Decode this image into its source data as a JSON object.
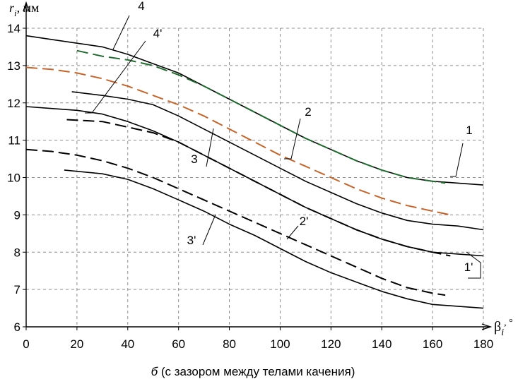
{
  "chart_data": {
    "type": "line",
    "ylabel_main": "r",
    "ylabel_sub": "i",
    "ylabel_unit": ", мм",
    "xlabel_main": "β",
    "xlabel_sub": "i",
    "xlabel_unit": ", °",
    "caption_prefix": "б",
    "caption_text": " (с зазором между телами качения)",
    "xlim": [
      0,
      180
    ],
    "ylim": [
      6,
      14
    ],
    "x_ticks": [
      0,
      20,
      40,
      60,
      80,
      100,
      120,
      140,
      160,
      180
    ],
    "y_ticks": [
      6,
      7,
      8,
      9,
      10,
      11,
      12,
      13,
      14
    ],
    "grid": true,
    "series": [
      {
        "name": "1",
        "style": "solid",
        "color": "#000000",
        "x": [
          0,
          10,
          20,
          30,
          40,
          50,
          60,
          70,
          80,
          90,
          100,
          110,
          120,
          130,
          140,
          150,
          160,
          170,
          180
        ],
        "y": [
          13.8,
          13.7,
          13.6,
          13.5,
          13.3,
          13.05,
          12.8,
          12.45,
          12.1,
          11.75,
          11.4,
          11.05,
          10.75,
          10.45,
          10.2,
          10.0,
          9.9,
          9.85,
          9.8
        ]
      },
      {
        "name": "4",
        "style": "dashed",
        "color": "#1f6b2e",
        "x": [
          20,
          30,
          40,
          50,
          60,
          70,
          80,
          90,
          100,
          110,
          120,
          130,
          140,
          150,
          160,
          165
        ],
        "y": [
          13.4,
          13.25,
          13.15,
          13.0,
          12.75,
          12.45,
          12.1,
          11.75,
          11.4,
          11.05,
          10.75,
          10.45,
          10.2,
          10.0,
          9.9,
          9.85
        ]
      },
      {
        "name": "2",
        "style": "dashed",
        "color": "#c8642a",
        "x": [
          0,
          10,
          20,
          30,
          40,
          50,
          60,
          70,
          80,
          90,
          100,
          110,
          120,
          130,
          140,
          150,
          160,
          167
        ],
        "y": [
          12.95,
          12.9,
          12.8,
          12.65,
          12.45,
          12.2,
          11.95,
          11.65,
          11.3,
          10.95,
          10.6,
          10.3,
          10.0,
          9.7,
          9.45,
          9.25,
          9.1,
          9.0
        ]
      },
      {
        "name": "3",
        "style": "solid",
        "color": "#000000",
        "x": [
          18,
          30,
          40,
          50,
          60,
          70,
          80,
          90,
          100,
          110,
          120,
          130,
          140,
          150,
          160,
          170,
          180
        ],
        "y": [
          12.3,
          12.2,
          12.1,
          11.95,
          11.65,
          11.3,
          10.95,
          10.6,
          10.25,
          9.9,
          9.6,
          9.3,
          9.05,
          8.85,
          8.75,
          8.7,
          8.6
        ]
      },
      {
        "name": "1'",
        "style": "solid",
        "color": "#000000",
        "x": [
          0,
          10,
          20,
          30,
          40,
          50,
          60,
          70,
          80,
          90,
          100,
          110,
          120,
          130,
          140,
          150,
          160,
          170,
          180
        ],
        "y": [
          11.9,
          11.85,
          11.8,
          11.7,
          11.5,
          11.25,
          10.95,
          10.6,
          10.25,
          9.9,
          9.55,
          9.2,
          8.9,
          8.6,
          8.35,
          8.15,
          8.0,
          7.95,
          7.9
        ]
      },
      {
        "name": "4'",
        "style": "dashed",
        "color": "#000000",
        "x": [
          16,
          30,
          40,
          50,
          60,
          70,
          80,
          90,
          100,
          110,
          120,
          130,
          140,
          150,
          160,
          167
        ],
        "y": [
          11.55,
          11.5,
          11.35,
          11.2,
          10.95,
          10.6,
          10.25,
          9.9,
          9.55,
          9.2,
          8.9,
          8.6,
          8.35,
          8.15,
          8.0,
          7.9
        ]
      },
      {
        "name": "2'",
        "style": "dashed",
        "color": "#000000",
        "x": [
          0,
          10,
          20,
          30,
          40,
          50,
          60,
          70,
          80,
          90,
          100,
          110,
          120,
          130,
          140,
          150,
          160,
          165
        ],
        "y": [
          10.75,
          10.7,
          10.6,
          10.45,
          10.25,
          10.0,
          9.7,
          9.4,
          9.1,
          8.8,
          8.5,
          8.2,
          7.9,
          7.6,
          7.3,
          7.05,
          6.9,
          6.85
        ]
      },
      {
        "name": "3'",
        "style": "solid",
        "color": "#000000",
        "x": [
          15,
          30,
          40,
          50,
          60,
          70,
          80,
          90,
          100,
          110,
          120,
          130,
          140,
          150,
          160,
          170,
          180
        ],
        "y": [
          10.2,
          10.1,
          9.95,
          9.7,
          9.4,
          9.1,
          8.75,
          8.45,
          8.1,
          7.75,
          7.45,
          7.2,
          6.95,
          6.75,
          6.6,
          6.55,
          6.5
        ]
      }
    ],
    "curve_labels": [
      {
        "text": "4",
        "target": "4"
      },
      {
        "text": "4'",
        "target": "4'"
      },
      {
        "text": "2",
        "target": "2"
      },
      {
        "text": "1",
        "target": "1"
      },
      {
        "text": "3",
        "target": "3"
      },
      {
        "text": "2'",
        "target": "2'"
      },
      {
        "text": "3'",
        "target": "3'"
      },
      {
        "text": "1'",
        "target": "1'"
      }
    ]
  }
}
